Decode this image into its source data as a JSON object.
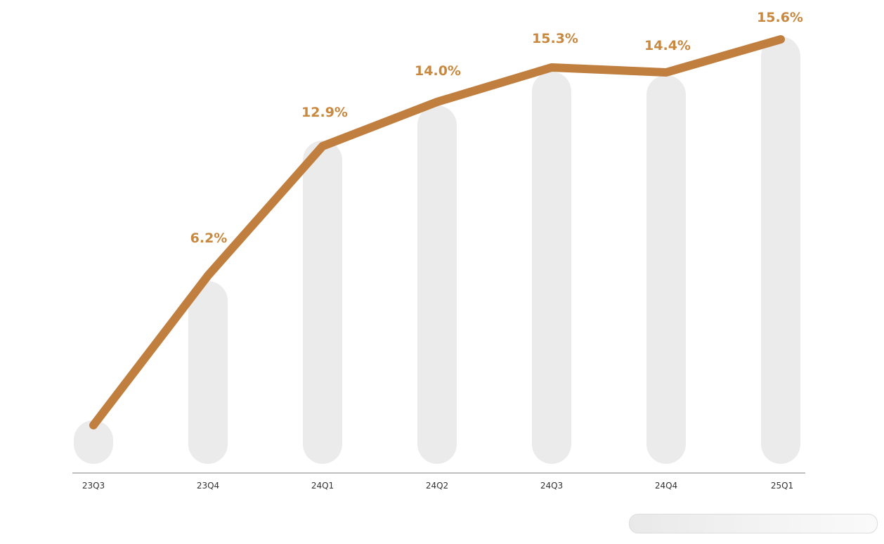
{
  "colors": {
    "line": "#C07F3F",
    "label": "#C8883F",
    "bar": "#EBEBEB",
    "axis": "#BFBFBF",
    "tick": "#333333"
  },
  "chart_data": {
    "type": "line",
    "categories": [
      "23Q3",
      "23Q4",
      "24Q1",
      "24Q2",
      "24Q3",
      "24Q4",
      "25Q1"
    ],
    "values": [
      null,
      6.2,
      12.9,
      14.0,
      15.3,
      14.4,
      15.6
    ],
    "data_labels": [
      "",
      "6.2%",
      "12.9%",
      "14.0%",
      "15.3%",
      "14.4%",
      "15.6%"
    ],
    "background_bars": true,
    "grid": false,
    "legend": "none",
    "ylim": [
      0,
      16
    ]
  }
}
